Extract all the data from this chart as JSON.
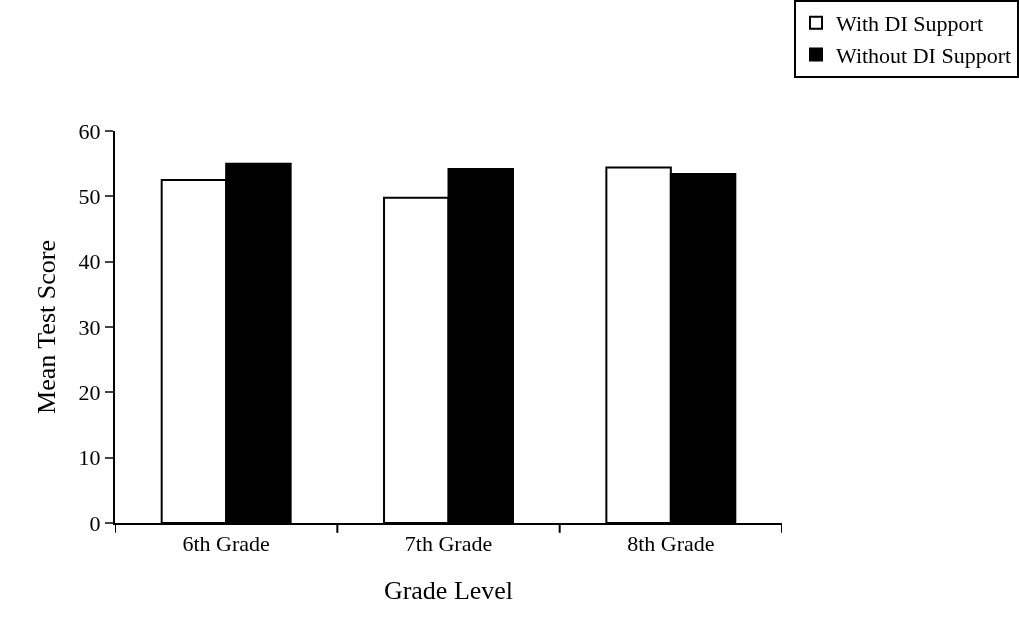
{
  "chart_data": {
    "type": "bar",
    "xlabel": "Grade Level",
    "ylabel": "Mean Test Score",
    "categories": [
      "6th Grade",
      "7th Grade",
      "8th Grade"
    ],
    "series": [
      {
        "name": "With DI Support",
        "color": "#ffffff",
        "values": [
          52.5,
          49.8,
          54.4
        ]
      },
      {
        "name": "Without DI Support",
        "color": "#000000",
        "values": [
          55.0,
          54.2,
          53.4
        ]
      }
    ],
    "ylim": [
      0,
      60
    ],
    "yticks": [
      0,
      10,
      20,
      30,
      40,
      50,
      60
    ],
    "legend": "top right"
  }
}
